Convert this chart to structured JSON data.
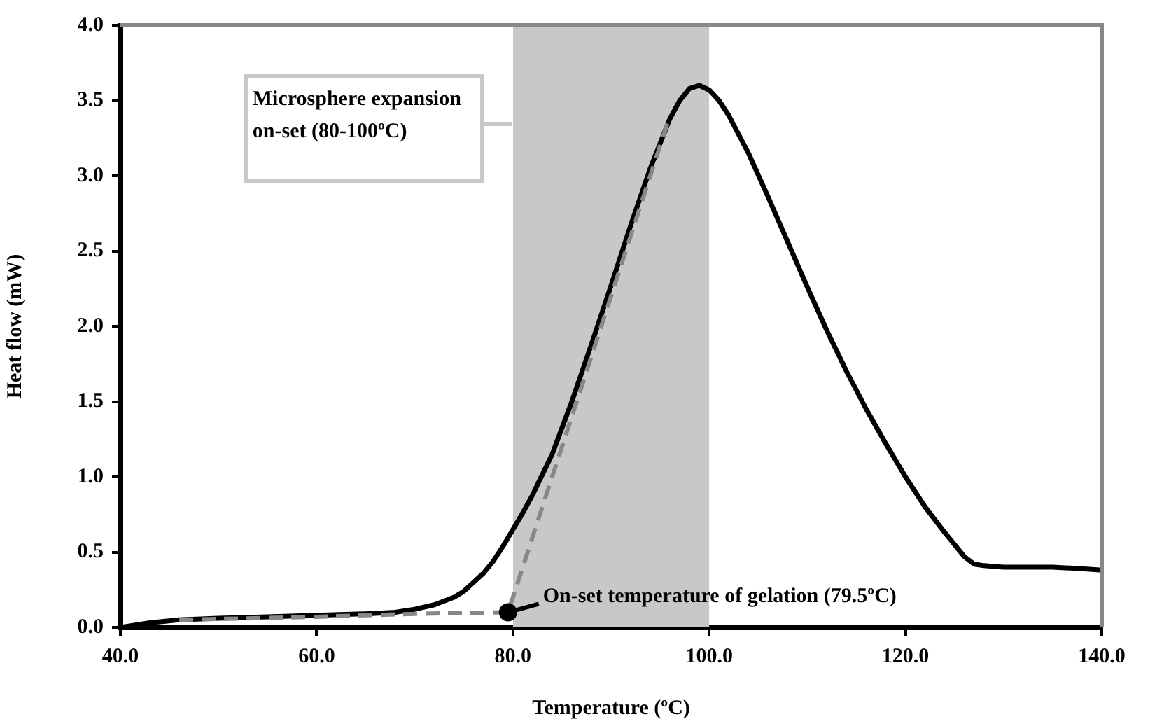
{
  "chart_data": {
    "type": "line",
    "xlabel": "Temperature (ºC)",
    "ylabel": "Heat flow (mW)",
    "xlim": [
      40,
      140
    ],
    "ylim": [
      0,
      4
    ],
    "xticks": [
      {
        "value": 40,
        "label": "40.0"
      },
      {
        "value": 60,
        "label": "60.0"
      },
      {
        "value": 80,
        "label": "80.0"
      },
      {
        "value": 100,
        "label": "100.0"
      },
      {
        "value": 120,
        "label": "120.0"
      },
      {
        "value": 140,
        "label": "140.0"
      }
    ],
    "yticks": [
      {
        "value": 0,
        "label": "0.0"
      },
      {
        "value": 0.5,
        "label": "0.5"
      },
      {
        "value": 1,
        "label": "1.0"
      },
      {
        "value": 1.5,
        "label": "1.5"
      },
      {
        "value": 2,
        "label": "2.0"
      },
      {
        "value": 2.5,
        "label": "2.5"
      },
      {
        "value": 3,
        "label": "3.0"
      },
      {
        "value": 3.5,
        "label": "3.5"
      },
      {
        "value": 4,
        "label": "4.0"
      }
    ],
    "grid": false,
    "legend": false,
    "marker": "none",
    "series": [
      {
        "type": "line",
        "color": "#000000",
        "line_style": "solid",
        "x": [
          40,
          43,
          46,
          50,
          55,
          60,
          65,
          68,
          70,
          72,
          74,
          75,
          76,
          77,
          78,
          79,
          80,
          81,
          82,
          84,
          86,
          88,
          90,
          92,
          94,
          96,
          97,
          98,
          99,
          100,
          101,
          102,
          104,
          106,
          108,
          110,
          112,
          114,
          116,
          118,
          120,
          122,
          124,
          125,
          126,
          127,
          128,
          130,
          132,
          135,
          138,
          140
        ],
        "values": [
          0,
          0.03,
          0.05,
          0.06,
          0.07,
          0.08,
          0.09,
          0.1,
          0.12,
          0.15,
          0.2,
          0.24,
          0.3,
          0.36,
          0.44,
          0.54,
          0.65,
          0.76,
          0.88,
          1.15,
          1.5,
          1.88,
          2.27,
          2.67,
          3.05,
          3.38,
          3.5,
          3.58,
          3.6,
          3.57,
          3.5,
          3.4,
          3.15,
          2.86,
          2.56,
          2.26,
          1.97,
          1.7,
          1.45,
          1.22,
          1.0,
          0.8,
          0.63,
          0.55,
          0.47,
          0.42,
          0.41,
          0.4,
          0.4,
          0.4,
          0.39,
          0.38
        ]
      },
      {
        "type": "line",
        "color": "#888888",
        "line_style": "dashed",
        "x": [
          46,
          60,
          70,
          79.5,
          87,
          96
        ],
        "values": [
          0.05,
          0.07,
          0.09,
          0.1,
          1.6,
          3.4
        ]
      }
    ],
    "bands": [
      {
        "axis": "x",
        "from": 80,
        "to": 100,
        "label": "Microsphere expansion on-set (80-100ºC)",
        "color": "#c8c8c8"
      }
    ],
    "annotations": [
      {
        "text": "On-set temperature of gelation (79.5ºC)",
        "x": 79.5,
        "y": 0.1
      }
    ]
  }
}
